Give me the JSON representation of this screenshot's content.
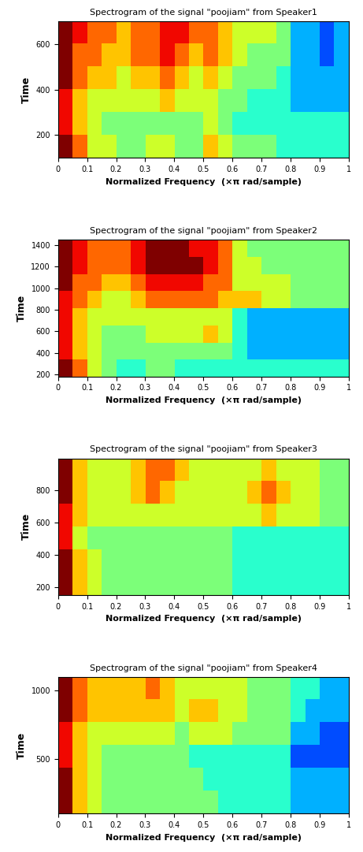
{
  "chart_data": [
    {
      "type": "heatmap",
      "title": "Spectrogram of the signal \"poojiam\" from Speaker1",
      "x_label": "Normalized Frequency  (×π rad/sample)",
      "y_label": "Time",
      "xlim": [
        0,
        1
      ],
      "xticks": [
        0,
        0.1,
        0.2,
        0.3,
        0.4,
        0.5,
        0.6,
        0.7,
        0.8,
        0.9,
        1
      ],
      "ylim": [
        100,
        700
      ],
      "yticks": [
        200,
        400,
        600
      ],
      "cell_range": [
        0,
        10
      ],
      "cells": [
        [
          10,
          8,
          6,
          6,
          5,
          5,
          6,
          6,
          5,
          5,
          7,
          6,
          5,
          5,
          5,
          4,
          4,
          4,
          4,
          4
        ],
        [
          9,
          7,
          6,
          5,
          5,
          5,
          5,
          5,
          5,
          5,
          6,
          5,
          4,
          4,
          4,
          4,
          4,
          4,
          4,
          4
        ],
        [
          9,
          7,
          6,
          6,
          6,
          6,
          6,
          7,
          6,
          6,
          6,
          5,
          5,
          4,
          4,
          4,
          3,
          3,
          3,
          3
        ],
        [
          10,
          8,
          7,
          7,
          6,
          7,
          7,
          8,
          7,
          6,
          7,
          6,
          5,
          5,
          5,
          4,
          3,
          3,
          3,
          3
        ],
        [
          10,
          8,
          8,
          7,
          7,
          8,
          8,
          9,
          8,
          7,
          8,
          7,
          6,
          5,
          5,
          5,
          3,
          3,
          2,
          3
        ],
        [
          10,
          9,
          8,
          8,
          7,
          8,
          8,
          9,
          9,
          8,
          8,
          7,
          6,
          6,
          6,
          5,
          3,
          3,
          2,
          3
        ]
      ]
    },
    {
      "type": "heatmap",
      "title": "Spectrogram of the signal \"poojiam\" from Speaker2",
      "x_label": "Normalized Frequency  (×π rad/sample)",
      "y_label": "Time",
      "xlim": [
        0,
        1
      ],
      "xticks": [
        0,
        0.1,
        0.2,
        0.3,
        0.4,
        0.5,
        0.6,
        0.7,
        0.8,
        0.9,
        1
      ],
      "ylim": [
        180,
        1450
      ],
      "yticks": [
        200,
        400,
        600,
        800,
        1000,
        1200,
        1400
      ],
      "cell_range": [
        0,
        10
      ],
      "cells": [
        [
          10,
          8,
          6,
          5,
          4,
          4,
          5,
          5,
          4,
          4,
          4,
          4,
          4,
          4,
          4,
          4,
          4,
          4,
          4,
          4
        ],
        [
          9,
          7,
          6,
          5,
          5,
          5,
          5,
          5,
          5,
          5,
          5,
          5,
          4,
          3,
          3,
          3,
          3,
          3,
          3,
          3
        ],
        [
          9,
          7,
          6,
          5,
          5,
          5,
          6,
          6,
          6,
          6,
          7,
          6,
          4,
          3,
          3,
          3,
          3,
          3,
          3,
          3
        ],
        [
          9,
          7,
          6,
          6,
          6,
          6,
          6,
          6,
          6,
          6,
          6,
          6,
          4,
          3,
          3,
          3,
          3,
          3,
          3,
          3
        ],
        [
          9,
          8,
          7,
          6,
          6,
          7,
          8,
          8,
          8,
          8,
          8,
          7,
          7,
          7,
          6,
          6,
          5,
          5,
          5,
          5
        ],
        [
          10,
          8,
          8,
          7,
          7,
          8,
          9,
          9,
          9,
          9,
          8,
          8,
          6,
          6,
          6,
          6,
          5,
          5,
          5,
          5
        ],
        [
          10,
          9,
          8,
          8,
          8,
          9,
          10,
          10,
          10,
          10,
          9,
          8,
          6,
          6,
          5,
          5,
          5,
          5,
          5,
          5
        ],
        [
          10,
          9,
          8,
          8,
          8,
          9,
          10,
          10,
          10,
          9,
          9,
          8,
          6,
          5,
          5,
          5,
          5,
          5,
          5,
          5
        ]
      ]
    },
    {
      "type": "heatmap",
      "title": "Spectrogram of the signal \"poojiam\" from Speaker3",
      "x_label": "Normalized Frequency  (×π rad/sample)",
      "y_label": "Time",
      "xlim": [
        0,
        1
      ],
      "xticks": [
        0,
        0.1,
        0.2,
        0.3,
        0.4,
        0.5,
        0.6,
        0.7,
        0.8,
        0.9,
        1
      ],
      "ylim": [
        150,
        1000
      ],
      "yticks": [
        200,
        400,
        600,
        800
      ],
      "cell_range": [
        0,
        10
      ],
      "cells": [
        [
          10,
          7,
          6,
          5,
          5,
          5,
          5,
          5,
          5,
          5,
          5,
          5,
          4,
          4,
          4,
          4,
          4,
          4,
          4,
          4
        ],
        [
          10,
          7,
          6,
          5,
          5,
          5,
          5,
          5,
          5,
          5,
          5,
          5,
          4,
          4,
          4,
          4,
          4,
          4,
          4,
          4
        ],
        [
          9,
          6,
          5,
          5,
          5,
          5,
          5,
          5,
          5,
          5,
          5,
          5,
          4,
          4,
          4,
          4,
          4,
          4,
          4,
          4
        ],
        [
          9,
          7,
          6,
          6,
          6,
          6,
          6,
          6,
          6,
          6,
          6,
          6,
          6,
          6,
          7,
          6,
          6,
          6,
          5,
          5
        ],
        [
          10,
          7,
          6,
          6,
          6,
          7,
          8,
          7,
          6,
          6,
          6,
          6,
          6,
          7,
          8,
          7,
          6,
          6,
          5,
          5
        ],
        [
          10,
          7,
          6,
          6,
          6,
          7,
          8,
          8,
          7,
          6,
          6,
          6,
          6,
          6,
          7,
          6,
          6,
          6,
          5,
          5
        ]
      ]
    },
    {
      "type": "heatmap",
      "title": "Spectrogram of the signal \"poojiam\" from Speaker4",
      "x_label": "Normalized Frequency  (×π rad/sample)",
      "y_label": "Time",
      "xlim": [
        0,
        1
      ],
      "xticks": [
        0,
        0.1,
        0.2,
        0.3,
        0.4,
        0.5,
        0.6,
        0.7,
        0.8,
        0.9,
        1
      ],
      "ylim": [
        100,
        1100
      ],
      "yticks": [
        500,
        1000
      ],
      "cell_range": [
        0,
        10
      ],
      "cells": [
        [
          10,
          7,
          6,
          5,
          5,
          5,
          5,
          5,
          5,
          5,
          5,
          4,
          4,
          4,
          4,
          4,
          3,
          3,
          3,
          3
        ],
        [
          10,
          7,
          6,
          5,
          5,
          5,
          5,
          5,
          5,
          5,
          4,
          4,
          4,
          4,
          4,
          4,
          3,
          3,
          3,
          3
        ],
        [
          9,
          7,
          6,
          5,
          5,
          5,
          5,
          5,
          5,
          4,
          4,
          4,
          4,
          4,
          4,
          4,
          2,
          2,
          2,
          2
        ],
        [
          9,
          7,
          6,
          6,
          6,
          6,
          6,
          6,
          5,
          6,
          6,
          6,
          5,
          5,
          5,
          5,
          3,
          3,
          2,
          2
        ],
        [
          10,
          8,
          7,
          7,
          7,
          7,
          7,
          7,
          6,
          7,
          7,
          6,
          6,
          5,
          5,
          5,
          4,
          3,
          3,
          3
        ],
        [
          10,
          8,
          7,
          7,
          7,
          7,
          8,
          7,
          6,
          6,
          6,
          6,
          6,
          5,
          5,
          5,
          4,
          4,
          3,
          3
        ]
      ]
    }
  ]
}
